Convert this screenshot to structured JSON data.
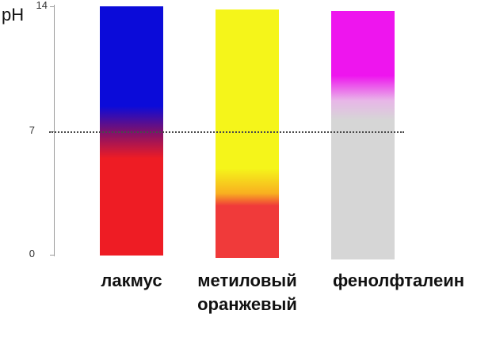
{
  "axis": {
    "title": "pH",
    "ticks": [
      "0",
      "7",
      "14"
    ]
  },
  "indicators": [
    {
      "name": "лакмус",
      "colors": {
        "acid": "#ee1c24",
        "base": "#0b0bd9"
      }
    },
    {
      "name": "метиловый оранжевый",
      "name_lines": [
        "метиловый",
        "оранжевый"
      ],
      "colors": {
        "acid": "#f03a3a",
        "base": "#f5f51a"
      }
    },
    {
      "name": "фенолфталеин",
      "colors": {
        "acid": "#d6d6d6",
        "base": "#ee15ee"
      }
    }
  ],
  "neutral_point": "7"
}
